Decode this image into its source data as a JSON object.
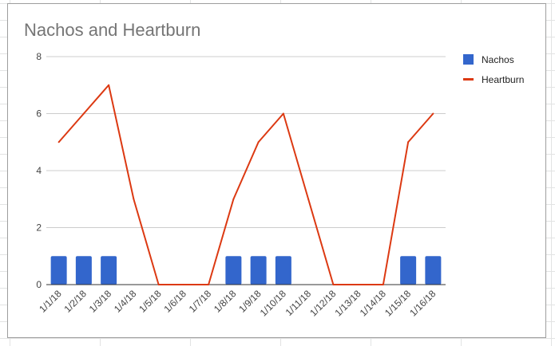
{
  "chart_data": {
    "type": "bar",
    "title": "Nachos and Heartburn",
    "categories": [
      "1/1/18",
      "1/2/18",
      "1/3/18",
      "1/4/18",
      "1/5/18",
      "1/6/18",
      "1/7/18",
      "1/8/18",
      "1/9/18",
      "1/10/18",
      "1/11/18",
      "1/12/18",
      "1/13/18",
      "1/14/18",
      "1/15/18",
      "1/16/18"
    ],
    "series": [
      {
        "name": "Nachos",
        "type": "bar",
        "color": "#3366cc",
        "values": [
          1,
          1,
          1,
          0,
          0,
          0,
          0,
          1,
          1,
          1,
          0,
          0,
          0,
          0,
          1,
          1
        ]
      },
      {
        "name": "Heartburn",
        "type": "line",
        "color": "#dc3912",
        "values": [
          5,
          6,
          7,
          3,
          0,
          0,
          0,
          3,
          5,
          6,
          3,
          0,
          0,
          0,
          5,
          6
        ]
      }
    ],
    "yticks": [
      "0",
      "2",
      "4",
      "6",
      "8"
    ],
    "ylim": [
      0,
      8
    ],
    "xlabel": "",
    "ylabel": "",
    "grid": true,
    "legend_position": "right"
  }
}
